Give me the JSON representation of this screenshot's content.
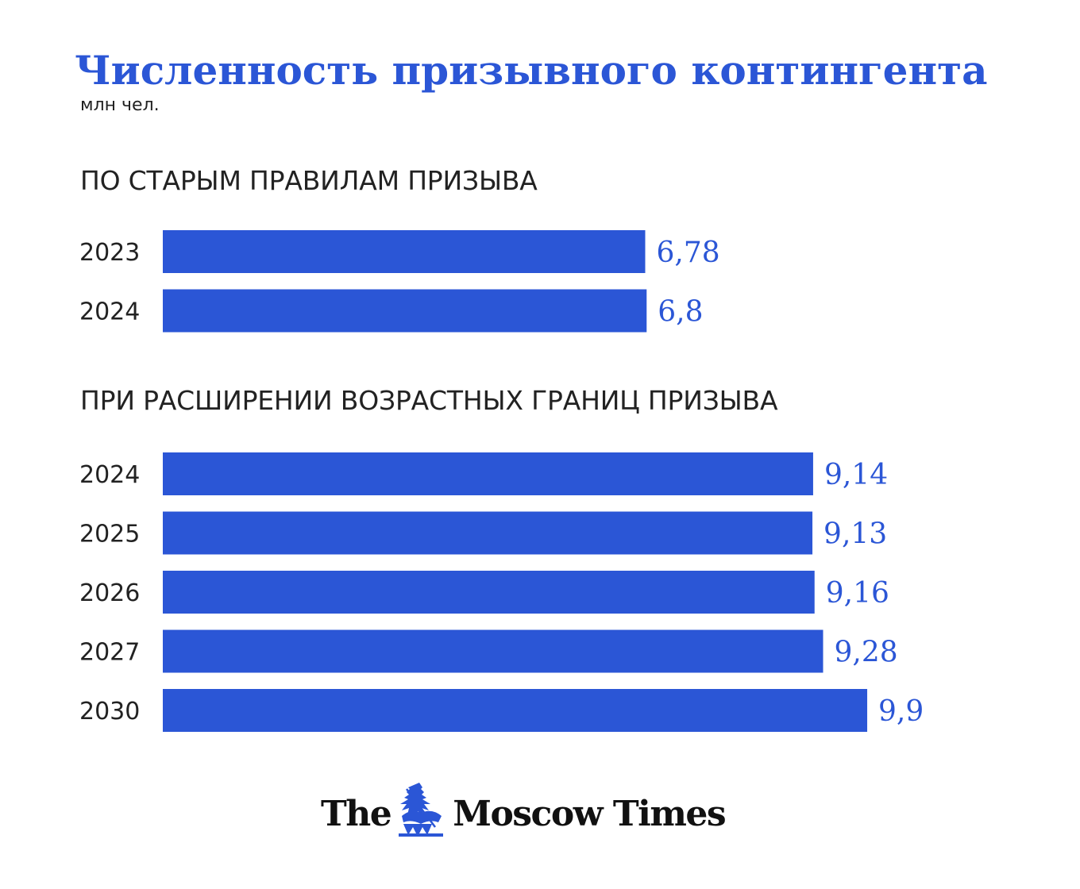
{
  "chart_data": [
    {
      "type": "bar",
      "title": "ПО СТАРЫМ ПРАВИЛАМ ПРИЗЫВА",
      "categories": [
        "2023",
        "2024"
      ],
      "values": [
        6.78,
        6.8
      ],
      "value_labels": [
        "6,78",
        "6,8"
      ],
      "orientation": "horizontal"
    },
    {
      "type": "bar",
      "title": "ПРИ РАСШИРЕНИИ ВОЗРАСТНЫХ ГРАНИЦ ПРИЗЫВА",
      "categories": [
        "2024",
        "2025",
        "2026",
        "2027",
        "2030"
      ],
      "values": [
        9.14,
        9.13,
        9.16,
        9.28,
        9.9
      ],
      "value_labels": [
        "9,14",
        "9,13",
        "9,16",
        "9,28",
        "9,9"
      ],
      "orientation": "horizontal"
    }
  ],
  "header": {
    "title": "Численность призывного контингента",
    "unit": "млн чел."
  },
  "colors": {
    "bar": "#2b56d6",
    "title": "#2b56d6",
    "value_label": "#2b56d6",
    "text": "#222222"
  },
  "logo": {
    "text_left": "The",
    "text_right": "Moscow Times",
    "emblem_icon": "saint-george-emblem-icon"
  }
}
